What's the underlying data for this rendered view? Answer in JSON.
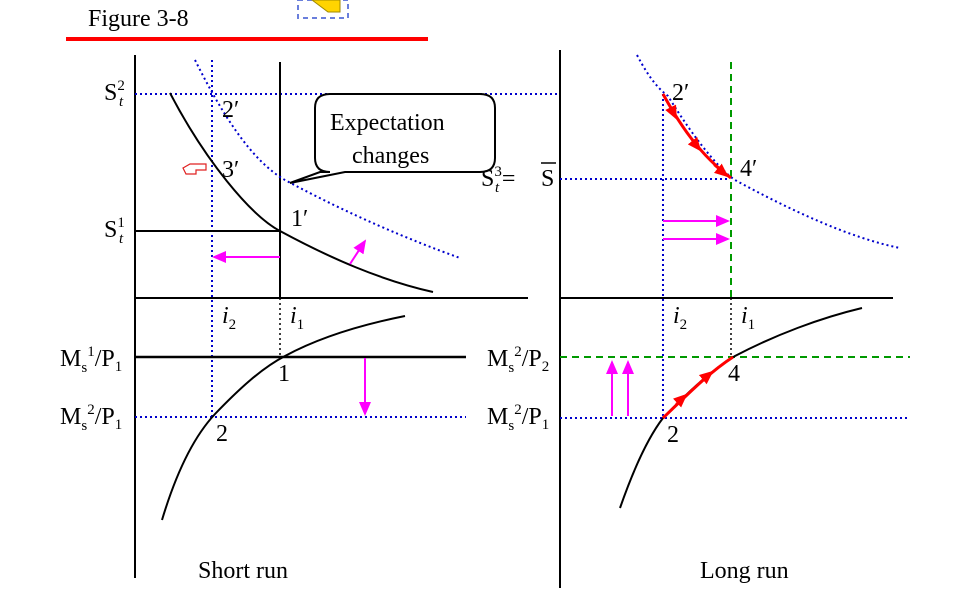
{
  "figure_label": "Figure 3-8",
  "callout": {
    "line1": "Expectation",
    "line2": "changes"
  },
  "left_panel": {
    "caption": "Short run",
    "y_labels": {
      "st2": "S",
      "st2_sub": "t",
      "st2_sup": "2",
      "st1": "S",
      "st1_sub": "t",
      "st1_sup": "1"
    },
    "x_labels": {
      "i2": "i",
      "i2_sub": "2",
      "i1": "i",
      "i1_sub": "1"
    },
    "m_labels": {
      "ms1p1": "M",
      "ms1p1_sub": "s",
      "ms1p1_sup": "1",
      "ms1p1_p": "/P",
      "ms1p1_psub": "1",
      "ms2p1": "M",
      "ms2p1_sub": "s",
      "ms2p1_sup": "2",
      "ms2p1_p": "/P",
      "ms2p1_psub": "1"
    },
    "points": {
      "p2prime": "2′",
      "p3prime": "3′",
      "p1prime": "1′",
      "p1": "1",
      "p2": "2"
    }
  },
  "right_panel": {
    "caption": "Long run",
    "y_labels": {
      "st3": "S",
      "st3_sub": "t",
      "st3_sup": "3",
      "eq": "= ",
      "sbar": "S"
    },
    "x_labels": {
      "i2": "i",
      "i2_sub": "2",
      "i1": "i",
      "i1_sub": "1"
    },
    "m_labels": {
      "ms2p2": "M",
      "ms2p2_sub": "s",
      "ms2p2_sup": "2",
      "ms2p2_p": "/P",
      "ms2p2_psub": "2",
      "ms2p1": "M",
      "ms2p1_sub": "s",
      "ms2p1_sup": "2",
      "ms2p1_p": "/P",
      "ms2p1_psub": "1"
    },
    "points": {
      "p2prime": "2′",
      "p4prime": "4′",
      "p4": "4",
      "p2": "2"
    }
  },
  "colors": {
    "accent_red": "#ff0000",
    "dotted_blue": "#0000cc",
    "magenta": "#ff00ff",
    "green": "#009900",
    "curve": "#000000"
  }
}
